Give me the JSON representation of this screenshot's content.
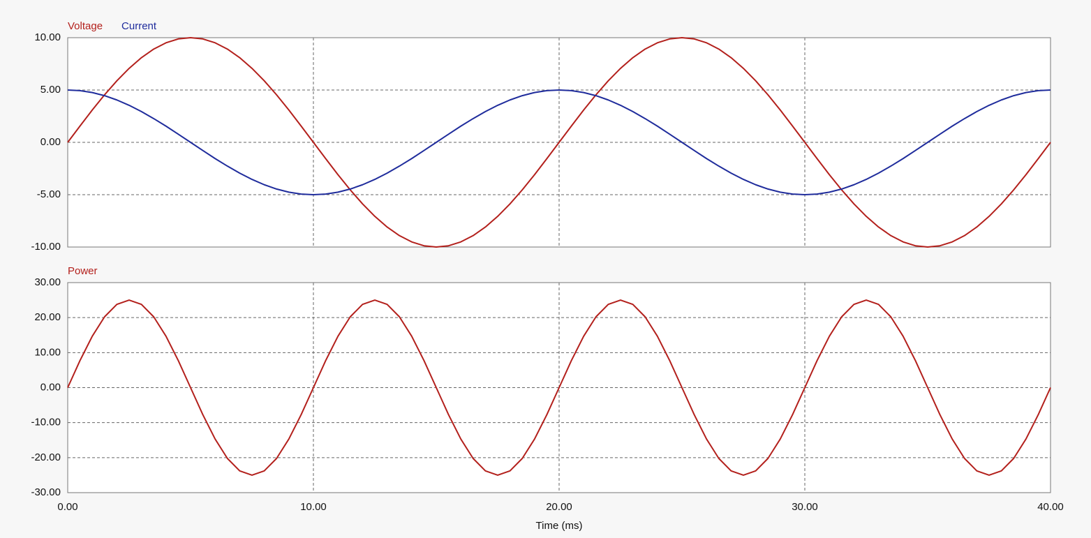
{
  "chart_data": [
    {
      "type": "line",
      "x": [
        0,
        0.5,
        1,
        1.5,
        2,
        2.5,
        3,
        3.5,
        4,
        4.5,
        5,
        5.5,
        6,
        6.5,
        7,
        7.5,
        8,
        8.5,
        9,
        9.5,
        10,
        10.5,
        11,
        11.5,
        12,
        12.5,
        13,
        13.5,
        14,
        14.5,
        15,
        15.5,
        16,
        16.5,
        17,
        17.5,
        18,
        18.5,
        19,
        19.5,
        20,
        20.5,
        21,
        21.5,
        22,
        22.5,
        23,
        23.5,
        24,
        24.5,
        25,
        25.5,
        26,
        26.5,
        27,
        27.5,
        28,
        28.5,
        29,
        29.5,
        30,
        30.5,
        31,
        31.5,
        32,
        32.5,
        33,
        33.5,
        34,
        34.5,
        35,
        35.5,
        36,
        36.5,
        37,
        37.5,
        38,
        38.5,
        39,
        39.5,
        40
      ],
      "series": [
        {
          "name": "Voltage",
          "color": "#b3201c",
          "values": [
            0,
            1.56,
            3.09,
            4.54,
            5.88,
            7.07,
            8.09,
            8.91,
            9.51,
            9.88,
            10,
            9.88,
            9.51,
            8.91,
            8.09,
            7.07,
            5.88,
            4.54,
            3.09,
            1.56,
            0,
            -1.56,
            -3.09,
            -4.54,
            -5.88,
            -7.07,
            -8.09,
            -8.91,
            -9.51,
            -9.88,
            -10,
            -9.88,
            -9.51,
            -8.91,
            -8.09,
            -7.07,
            -5.88,
            -4.54,
            -3.09,
            -1.56,
            0,
            1.56,
            3.09,
            4.54,
            5.88,
            7.07,
            8.09,
            8.91,
            9.51,
            9.88,
            10,
            9.88,
            9.51,
            8.91,
            8.09,
            7.07,
            5.88,
            4.54,
            3.09,
            1.56,
            0,
            -1.56,
            -3.09,
            -4.54,
            -5.88,
            -7.07,
            -8.09,
            -8.91,
            -9.51,
            -9.88,
            -10,
            -9.88,
            -9.51,
            -8.91,
            -8.09,
            -7.07,
            -5.88,
            -4.54,
            -3.09,
            -1.56,
            0
          ]
        },
        {
          "name": "Current",
          "color": "#1f2c9c",
          "values": [
            5,
            4.94,
            4.76,
            4.46,
            4.05,
            3.54,
            2.94,
            2.27,
            1.55,
            0.78,
            0,
            -0.78,
            -1.55,
            -2.27,
            -2.94,
            -3.54,
            -4.05,
            -4.46,
            -4.76,
            -4.94,
            -5,
            -4.94,
            -4.76,
            -4.46,
            -4.05,
            -3.54,
            -2.94,
            -2.27,
            -1.55,
            -0.78,
            0,
            0.78,
            1.55,
            2.27,
            2.94,
            3.54,
            4.05,
            4.46,
            4.76,
            4.94,
            5,
            4.94,
            4.76,
            4.46,
            4.05,
            3.54,
            2.94,
            2.27,
            1.55,
            0.78,
            0,
            -0.78,
            -1.55,
            -2.27,
            -2.94,
            -3.54,
            -4.05,
            -4.46,
            -4.76,
            -4.94,
            -5,
            -4.94,
            -4.76,
            -4.46,
            -4.05,
            -3.54,
            -2.94,
            -2.27,
            -1.55,
            -0.78,
            0,
            0.78,
            1.55,
            2.27,
            2.94,
            3.54,
            4.05,
            4.46,
            4.76,
            4.94,
            5
          ]
        }
      ],
      "xlim": [
        0,
        40
      ],
      "xticks": [
        0,
        10,
        20,
        30,
        40
      ],
      "ylim": [
        -10,
        10
      ],
      "yticks": [
        {
          "value": -10,
          "label": "-10.00"
        },
        {
          "value": -5,
          "label": "-5.00"
        },
        {
          "value": 0,
          "label": "0.00"
        },
        {
          "value": 5,
          "label": "5.00"
        },
        {
          "value": 10,
          "label": "10.00"
        }
      ],
      "grid": true
    },
    {
      "type": "line",
      "x": [
        0,
        0.5,
        1,
        1.5,
        2,
        2.5,
        3,
        3.5,
        4,
        4.5,
        5,
        5.5,
        6,
        6.5,
        7,
        7.5,
        8,
        8.5,
        9,
        9.5,
        10,
        10.5,
        11,
        11.5,
        12,
        12.5,
        13,
        13.5,
        14,
        14.5,
        15,
        15.5,
        16,
        16.5,
        17,
        17.5,
        18,
        18.5,
        19,
        19.5,
        20,
        20.5,
        21,
        21.5,
        22,
        22.5,
        23,
        23.5,
        24,
        24.5,
        25,
        25.5,
        26,
        26.5,
        27,
        27.5,
        28,
        28.5,
        29,
        29.5,
        30,
        30.5,
        31,
        31.5,
        32,
        32.5,
        33,
        33.5,
        34,
        34.5,
        35,
        35.5,
        36,
        36.5,
        37,
        37.5,
        38,
        38.5,
        39,
        39.5,
        40
      ],
      "series": [
        {
          "name": "Power",
          "color": "#b3201c",
          "values": [
            0,
            7.73,
            14.69,
            20.23,
            23.78,
            25,
            23.78,
            20.23,
            14.69,
            7.73,
            0,
            -7.73,
            -14.69,
            -20.23,
            -23.78,
            -25,
            -23.78,
            -20.23,
            -14.69,
            -7.73,
            0,
            7.73,
            14.69,
            20.23,
            23.78,
            25,
            23.78,
            20.23,
            14.69,
            7.73,
            0,
            -7.73,
            -14.69,
            -20.23,
            -23.78,
            -25,
            -23.78,
            -20.23,
            -14.69,
            -7.73,
            0,
            7.73,
            14.69,
            20.23,
            23.78,
            25,
            23.78,
            20.23,
            14.69,
            7.73,
            0,
            -7.73,
            -14.69,
            -20.23,
            -23.78,
            -25,
            -23.78,
            -20.23,
            -14.69,
            -7.73,
            0,
            7.73,
            14.69,
            20.23,
            23.78,
            25,
            23.78,
            20.23,
            14.69,
            7.73,
            0,
            -7.73,
            -14.69,
            -20.23,
            -23.78,
            -25,
            -23.78,
            -20.23,
            -14.69,
            -7.73,
            0
          ]
        }
      ],
      "xlabel": "Time (ms)",
      "xlim": [
        0,
        40
      ],
      "xticks": [
        {
          "value": 0,
          "label": "0.00"
        },
        {
          "value": 10,
          "label": "10.00"
        },
        {
          "value": 20,
          "label": "20.00"
        },
        {
          "value": 30,
          "label": "30.00"
        },
        {
          "value": 40,
          "label": "40.00"
        }
      ],
      "ylim": [
        -30,
        30
      ],
      "yticks": [
        {
          "value": -30,
          "label": "-30.00"
        },
        {
          "value": -20,
          "label": "-20.00"
        },
        {
          "value": -10,
          "label": "-10.00"
        },
        {
          "value": 0,
          "label": "0.00"
        },
        {
          "value": 10,
          "label": "10.00"
        },
        {
          "value": 20,
          "label": "20.00"
        },
        {
          "value": 30,
          "label": "30.00"
        }
      ],
      "grid": true
    }
  ]
}
